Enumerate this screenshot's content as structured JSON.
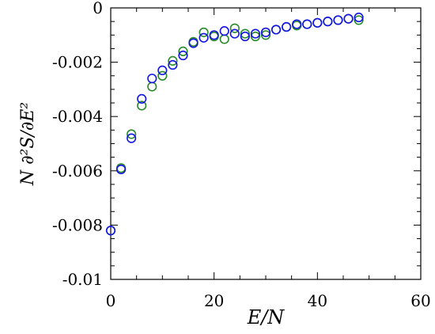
{
  "chart_data": {
    "type": "scatter",
    "title": "",
    "xlabel": "E/N",
    "ylabel": "N ∂²S/∂E²",
    "xlim": [
      0,
      60
    ],
    "ylim": [
      -0.01,
      0
    ],
    "x_ticks": [
      0,
      20,
      40,
      60
    ],
    "x_tick_labels": [
      "0",
      "20",
      "40",
      "60"
    ],
    "y_ticks": [
      0,
      -0.002,
      -0.004,
      -0.006,
      -0.008,
      -0.01
    ],
    "y_tick_labels": [
      "0",
      "-0.002",
      "-0.004",
      "-0.006",
      "-0.008",
      "-0.01"
    ],
    "grid": false,
    "legend": "none",
    "marker": "open-circle",
    "series": [
      {
        "color": "#2a8a2a",
        "x": [
          0,
          2,
          4,
          6,
          8,
          10,
          12,
          14,
          16,
          18,
          20,
          22,
          24,
          26,
          28,
          30,
          32,
          34,
          36,
          38,
          40,
          42,
          44,
          46,
          48
        ],
        "y": [
          -0.0082,
          -0.0059,
          -0.00465,
          -0.0036,
          -0.0029,
          -0.0025,
          -0.00195,
          -0.0016,
          -0.00125,
          -0.0009,
          -0.00105,
          -0.00115,
          -0.00075,
          -0.00095,
          -0.00105,
          -0.001,
          -0.0008,
          -0.0007,
          -0.00065,
          -0.0006,
          -0.00055,
          -0.0005,
          -0.00045,
          -0.0004,
          -0.00045
        ]
      },
      {
        "color": "#1414e6",
        "x": [
          0,
          2,
          4,
          6,
          8,
          10,
          12,
          14,
          16,
          18,
          20,
          22,
          24,
          26,
          28,
          30,
          32,
          34,
          36,
          38,
          40,
          42,
          44,
          46,
          48
        ],
        "y": [
          -0.0082,
          -0.00595,
          -0.0048,
          -0.00335,
          -0.0026,
          -0.0023,
          -0.0021,
          -0.00175,
          -0.0013,
          -0.0011,
          -0.001,
          -0.00085,
          -0.00095,
          -0.00105,
          -0.00095,
          -0.0009,
          -0.0008,
          -0.0007,
          -0.0006,
          -0.0006,
          -0.00055,
          -0.0005,
          -0.00045,
          -0.0004,
          -0.00035
        ]
      }
    ]
  }
}
